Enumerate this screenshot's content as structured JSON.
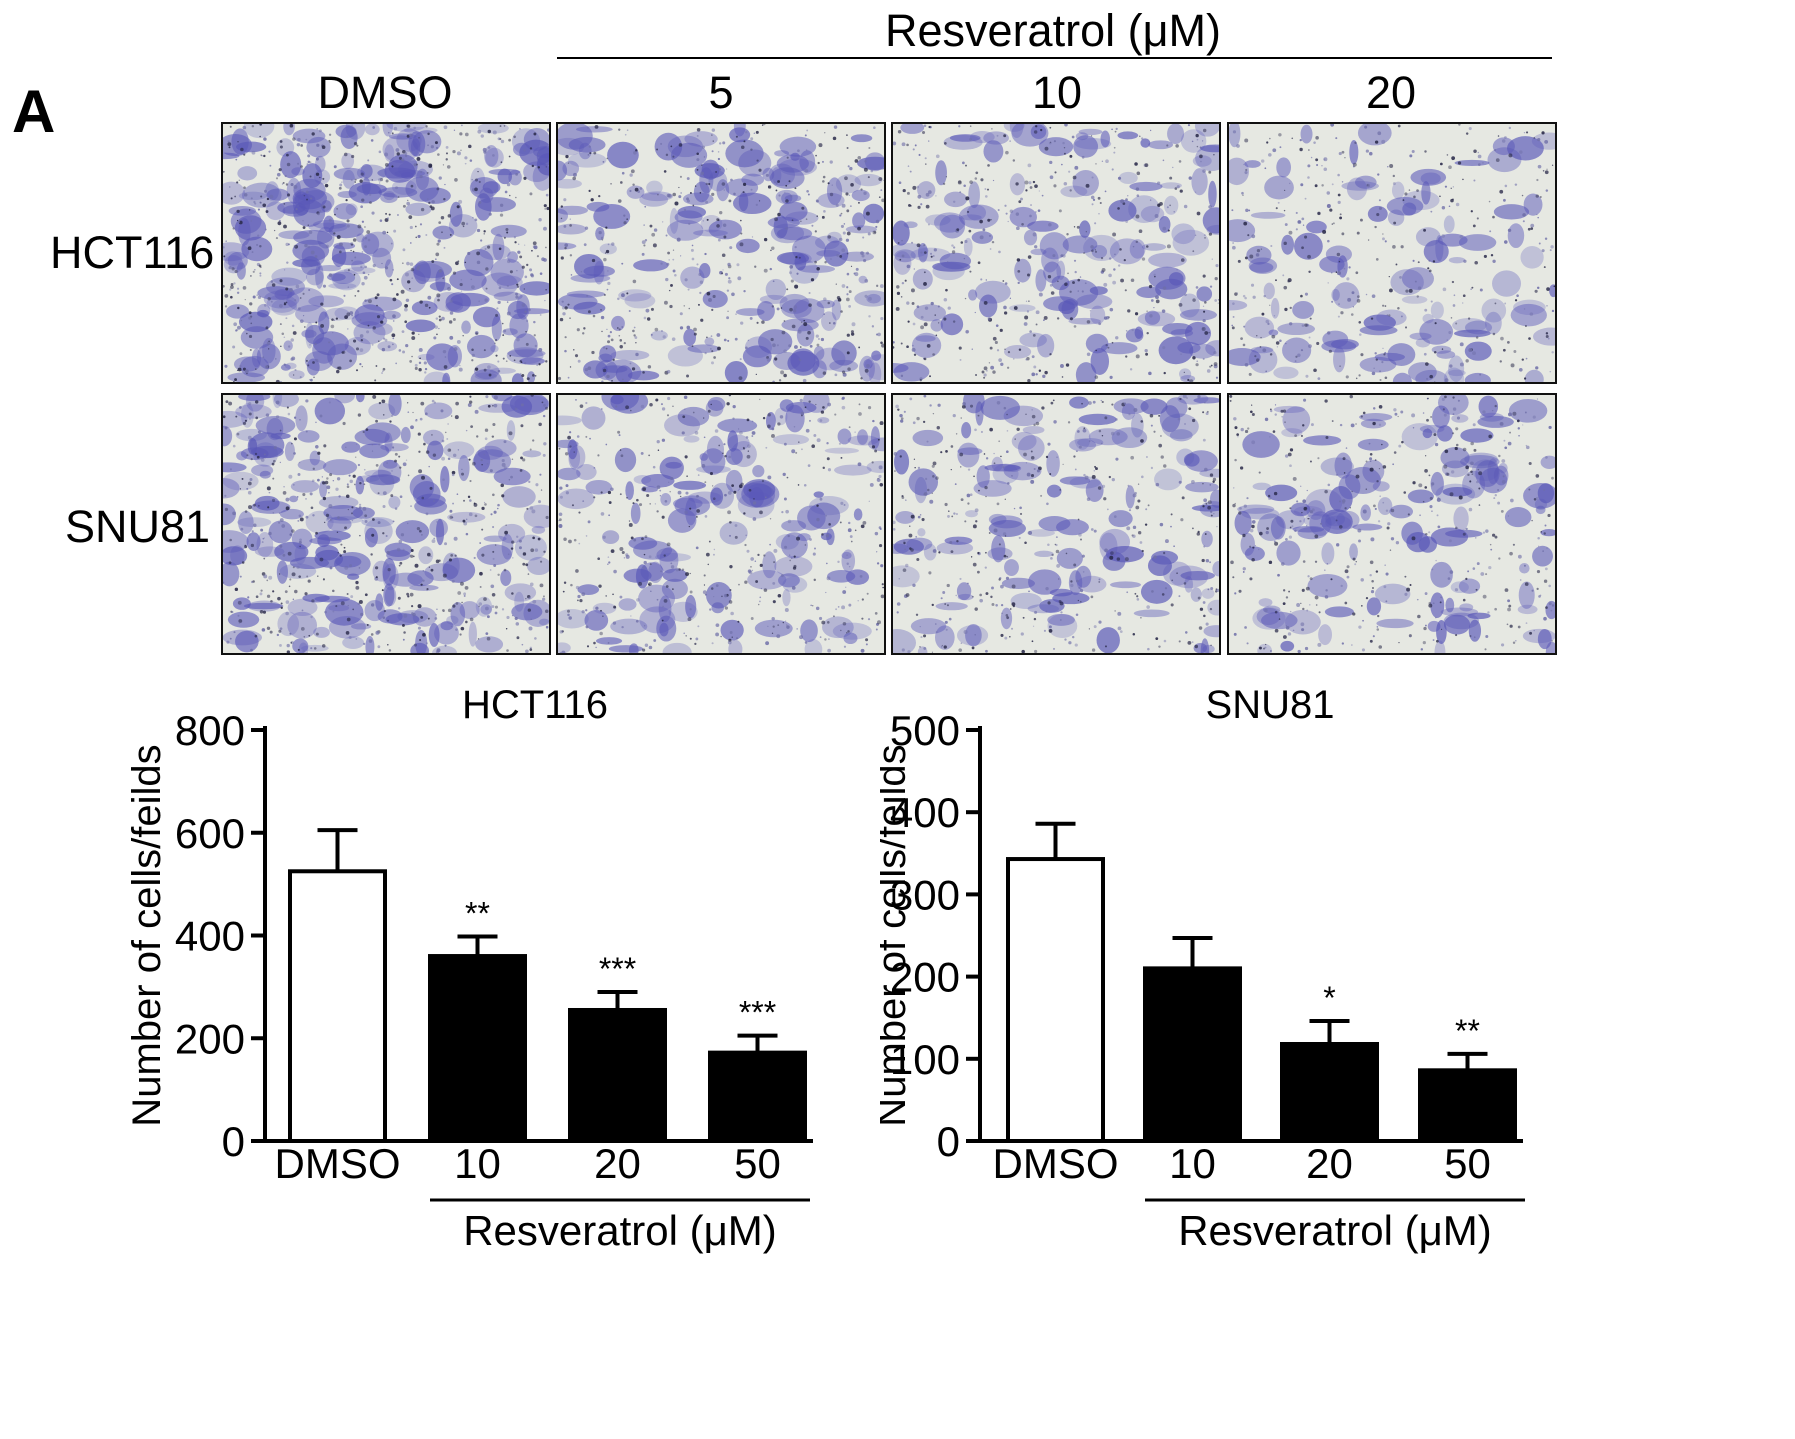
{
  "panel_label": "A",
  "micrographs": {
    "group_label": "Resveratrol (μM)",
    "columns": [
      "DMSO",
      "5",
      "10",
      "20"
    ],
    "rows": [
      "HCT116",
      "SNU81"
    ],
    "stain_color": "#5a58b8",
    "density": [
      [
        0.92,
        0.55,
        0.45,
        0.3
      ],
      [
        0.72,
        0.45,
        0.4,
        0.4
      ]
    ]
  },
  "chart_data": [
    {
      "type": "bar",
      "title": "HCT116",
      "ylabel": "Number of cells/feilds",
      "categories": [
        "DMSO",
        "10",
        "20",
        "50"
      ],
      "values": [
        525,
        360,
        255,
        172
      ],
      "errors": [
        80,
        38,
        35,
        33
      ],
      "fills": [
        "#ffffff",
        "#000000",
        "#000000",
        "#000000"
      ],
      "significance": [
        "",
        "**",
        "***",
        "***"
      ],
      "ylim": [
        0,
        800
      ],
      "yticks": [
        0,
        200,
        400,
        600,
        800
      ],
      "group_label": "Resveratrol (μM)"
    },
    {
      "type": "bar",
      "title": "SNU81",
      "ylabel": "Number of cells/feilds",
      "categories": [
        "DMSO",
        "10",
        "20",
        "50"
      ],
      "values": [
        343,
        210,
        118,
        86
      ],
      "errors": [
        43,
        37,
        28,
        20
      ],
      "fills": [
        "#ffffff",
        "#000000",
        "#000000",
        "#000000"
      ],
      "significance": [
        "",
        "",
        "*",
        "**"
      ],
      "ylim": [
        0,
        500
      ],
      "yticks": [
        0,
        100,
        200,
        300,
        400,
        500
      ],
      "group_label": "Resveratrol (μM)"
    }
  ]
}
